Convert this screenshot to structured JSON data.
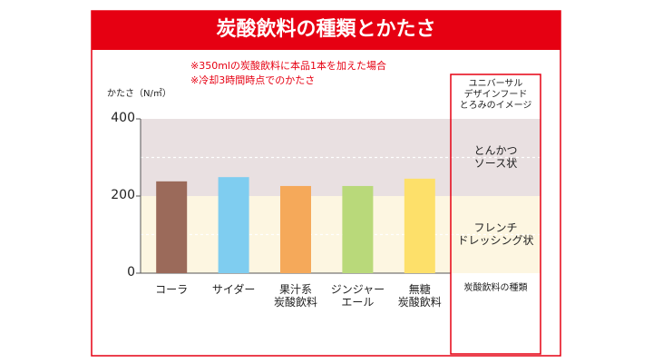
{
  "chart_data": {
    "type": "bar",
    "title": "炭酸飲料の種類とかたさ",
    "notes": [
      "※350mlの炭酸飲料に本品1本を加えた場合",
      "※冷却3時間時点でのかたさ"
    ],
    "y_label": "かたさ（N/㎡）",
    "categories": [
      "コーラ",
      "サイダー",
      "果汁系\n炭酸飲料",
      "ジンジャー\nエール",
      "無糖\n炭酸飲料"
    ],
    "values": [
      238,
      249,
      226,
      226,
      245
    ],
    "colors": [
      "#9b6a5a",
      "#7fcdf0",
      "#f5a95a",
      "#b9d97a",
      "#fde06a"
    ],
    "ylim": [
      0,
      400
    ],
    "yticks": [
      0,
      200,
      400
    ],
    "dashed_grid": [
      100,
      300
    ],
    "bands_title": "ユニバーサル\nデザインフード\nとろみのイメージ",
    "bands": [
      {
        "label": "フレンチ\nドレッシング状",
        "from": 0,
        "to": 200,
        "color": "#fdf6e1"
      },
      {
        "label": "とんかつ\nソース状",
        "from": 200,
        "to": 400,
        "color": "#e9e0e1"
      }
    ],
    "bands_footer": "炭酸飲料の種類",
    "accent": "#e60012"
  }
}
